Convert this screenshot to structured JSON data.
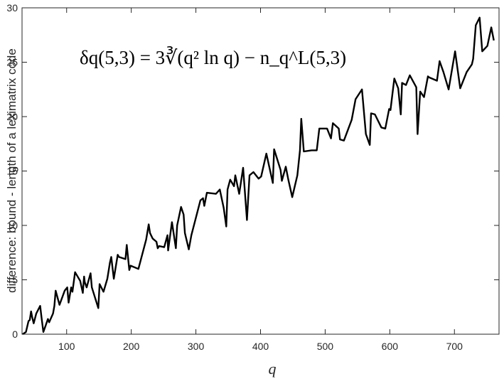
{
  "chart_data": {
    "type": "line",
    "title": "",
    "xlabel": "q",
    "ylabel": "difference: bound - length of a leximatrix code",
    "annotation": "δq(5,3) = 3∛(q² ln q) − n_q^L(5,3)",
    "xlim": [
      31,
      769
    ],
    "ylim": [
      0,
      30
    ],
    "xticks": [
      100,
      200,
      300,
      400,
      500,
      600,
      700
    ],
    "yticks": [
      0,
      5,
      10,
      15,
      20,
      25,
      30
    ],
    "grid": false,
    "legend": "none",
    "line_color": "#000000",
    "series": [
      {
        "x": [
          32,
          37,
          41,
          43,
          45,
          47,
          49,
          53,
          59,
          61,
          64,
          67,
          71,
          73,
          79,
          81,
          83,
          89,
          97,
          101,
          103,
          107,
          109,
          113,
          121,
          125,
          127,
          128,
          131,
          137,
          139,
          149,
          151,
          157,
          163,
          167,
          169,
          173,
          179,
          181,
          191,
          193,
          197,
          199,
          211,
          223,
          227,
          229,
          233,
          239,
          241,
          243,
          251,
          256,
          257,
          263,
          269,
          271,
          277,
          281,
          283,
          289,
          293,
          307,
          311,
          313,
          317,
          331,
          337,
          343,
          347,
          349,
          353,
          359,
          361,
          367,
          373,
          379,
          383,
          389,
          397,
          401,
          409,
          419,
          421,
          431,
          433,
          439,
          443,
          449,
          457,
          461,
          463,
          467,
          479,
          487,
          491,
          499,
          503,
          509,
          512,
          521,
          523,
          529,
          541,
          547,
          557,
          563,
          569,
          571,
          577,
          587,
          593,
          599,
          601,
          607,
          613,
          617,
          619,
          625,
          631,
          641,
          643,
          647,
          653,
          659,
          661,
          673,
          677,
          683,
          691,
          701,
          709,
          719,
          727,
          729,
          733,
          739,
          743,
          751,
          757,
          761
        ],
        "values": [
          0.0,
          0.2,
          1.2,
          1.3,
          2.1,
          1.5,
          1.0,
          1.9,
          2.6,
          1.6,
          0.2,
          0.7,
          1.4,
          1.1,
          1.9,
          2.6,
          4.0,
          2.7,
          4.0,
          4.3,
          2.9,
          4.3,
          3.9,
          5.7,
          4.9,
          3.8,
          5.3,
          4.8,
          4.3,
          5.6,
          4.3,
          2.4,
          4.6,
          3.9,
          5.1,
          6.6,
          7.1,
          5.1,
          7.3,
          7.1,
          6.9,
          8.2,
          5.9,
          6.3,
          6.0,
          8.7,
          10.1,
          9.3,
          8.8,
          8.5,
          7.9,
          8.1,
          8.0,
          9.1,
          7.7,
          10.3,
          7.9,
          10.0,
          11.7,
          11.0,
          9.3,
          7.8,
          9.1,
          12.3,
          12.5,
          11.8,
          13.0,
          12.9,
          13.3,
          11.6,
          9.9,
          13.3,
          14.2,
          13.6,
          14.6,
          12.9,
          15.3,
          10.5,
          14.6,
          14.9,
          14.3,
          14.5,
          16.6,
          13.9,
          17.0,
          15.1,
          14.1,
          15.4,
          14.2,
          12.6,
          14.6,
          16.9,
          19.8,
          16.8,
          16.9,
          16.9,
          18.9,
          18.9,
          18.9,
          18.0,
          19.4,
          18.9,
          17.9,
          17.8,
          19.7,
          21.6,
          22.5,
          18.4,
          17.4,
          20.3,
          20.2,
          19.0,
          18.9,
          20.7,
          20.6,
          23.5,
          22.6,
          20.2,
          23.1,
          22.9,
          23.8,
          22.7,
          18.4,
          22.3,
          21.8,
          23.7,
          23.6,
          23.3,
          25.1,
          24.1,
          22.5,
          26.0,
          22.6,
          24.1,
          24.8,
          25.3,
          28.4,
          29.1,
          26.0,
          26.5,
          28.2,
          27.0
        ]
      }
    ]
  }
}
